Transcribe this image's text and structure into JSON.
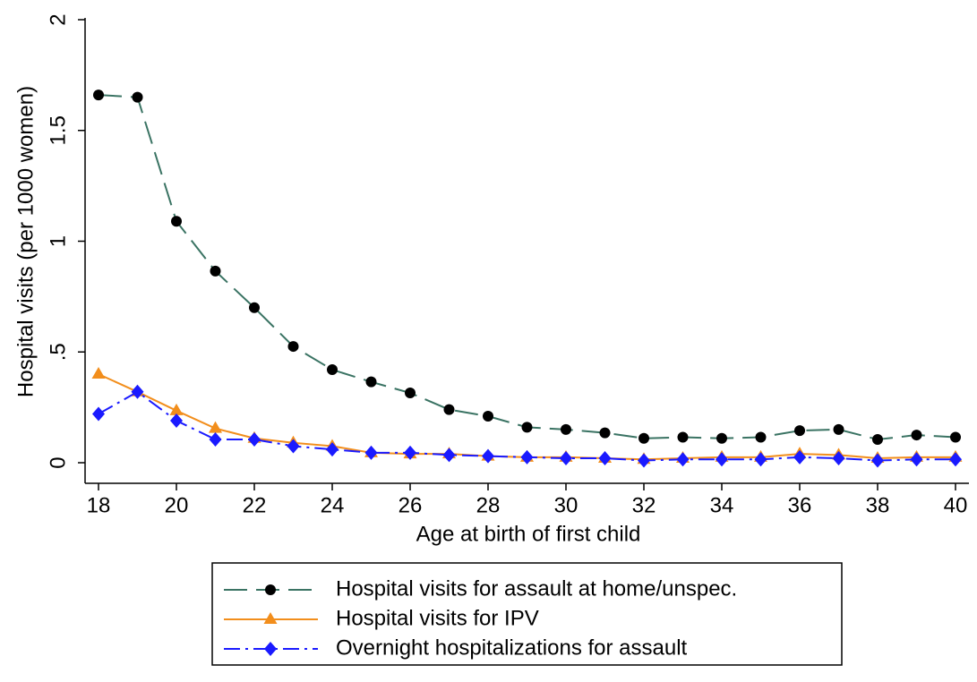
{
  "chart_data": {
    "type": "line",
    "xlabel": "Age at birth of first child",
    "ylabel": "Hospital visits (per 1000 women)",
    "x": [
      18,
      19,
      20,
      21,
      22,
      23,
      24,
      25,
      26,
      27,
      28,
      29,
      30,
      31,
      32,
      33,
      34,
      35,
      36,
      37,
      38,
      39,
      40
    ],
    "xlim": [
      18,
      40
    ],
    "xticks": [
      18,
      20,
      22,
      24,
      26,
      28,
      30,
      32,
      34,
      36,
      38,
      40
    ],
    "ylim": [
      0,
      2
    ],
    "yticks": [
      0,
      {
        "value": 0.5,
        "label": ".5"
      },
      1,
      1.5,
      2
    ],
    "grid": false,
    "legend": "bottom",
    "series": [
      {
        "name": "Hospital visits for assault at home/unspec.",
        "color": "#3a7363",
        "marker_color": "#000000",
        "dash": "dashed",
        "marker": "circle",
        "values": [
          1.66,
          1.65,
          1.09,
          0.865,
          0.7,
          0.525,
          0.42,
          0.365,
          0.315,
          0.24,
          0.21,
          0.16,
          0.15,
          0.135,
          0.11,
          0.115,
          0.11,
          0.115,
          0.145,
          0.15,
          0.105,
          0.125,
          0.115
        ]
      },
      {
        "name": "Hospital visits for IPV",
        "color": "#f28e1c",
        "marker_color": "#f28e1c",
        "dash": "solid",
        "marker": "triangle",
        "values": [
          0.4,
          0.32,
          0.235,
          0.155,
          0.11,
          0.09,
          0.075,
          0.045,
          0.04,
          0.04,
          0.03,
          0.025,
          0.025,
          0.02,
          0.015,
          0.02,
          0.025,
          0.025,
          0.04,
          0.035,
          0.02,
          0.025,
          0.025
        ]
      },
      {
        "name": "Overnight hospitalizations for assault",
        "color": "#1a1aff",
        "marker_color": "#1a1aff",
        "dash": "dashdot",
        "marker": "diamond",
        "values": [
          0.22,
          0.32,
          0.19,
          0.105,
          0.105,
          0.075,
          0.06,
          0.045,
          0.045,
          0.035,
          0.03,
          0.025,
          0.02,
          0.02,
          0.01,
          0.015,
          0.015,
          0.015,
          0.025,
          0.02,
          0.01,
          0.015,
          0.015
        ]
      }
    ]
  }
}
